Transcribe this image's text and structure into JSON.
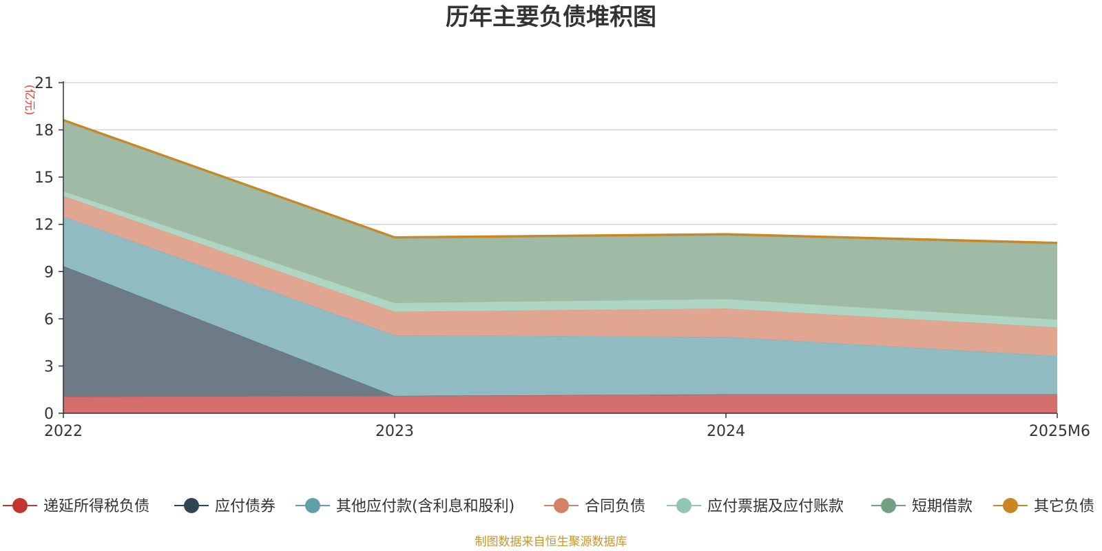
{
  "chart_data": {
    "type": "area",
    "stacked": true,
    "title": "历年主要负债堆积图",
    "ylabel": "(亿元)",
    "categories": [
      "2022",
      "2023",
      "2024",
      "2025M6"
    ],
    "ylim": [
      0,
      21
    ],
    "yticks": [
      0,
      3,
      6,
      9,
      12,
      15,
      18,
      21
    ],
    "grid": true,
    "legend_position": "bottom",
    "series": [
      {
        "name": "递延所得税负债",
        "color": "#c23531",
        "fill": "#d46e6c",
        "values": [
          1.05,
          1.1,
          1.2,
          1.2
        ]
      },
      {
        "name": "应付债券",
        "color": "#2f4554",
        "fill": "#6d7b86",
        "values": [
          8.3,
          0.0,
          0.0,
          0.0
        ]
      },
      {
        "name": "其他应付款(含利息和股利)",
        "color": "#61a0a8",
        "fill": "#90bbc2",
        "values": [
          3.15,
          3.85,
          3.65,
          2.45
        ]
      },
      {
        "name": "合同负债",
        "color": "#d48265",
        "fill": "#e1a692",
        "values": [
          1.3,
          1.5,
          1.8,
          1.8
        ]
      },
      {
        "name": "应付票据及应付账款",
        "color": "#91c7ae",
        "fill": "#aed6c3",
        "values": [
          0.3,
          0.55,
          0.6,
          0.5
        ]
      },
      {
        "name": "短期借款",
        "color": "#749f83",
        "fill": "#9fbba5",
        "values": [
          4.45,
          4.1,
          4.05,
          4.8
        ]
      },
      {
        "name": "其它负债",
        "color": "#ca8622",
        "fill": "#ca8622",
        "values": [
          0.1,
          0.1,
          0.1,
          0.1
        ]
      }
    ],
    "source": "制图数据来自恒生聚源数据库"
  }
}
